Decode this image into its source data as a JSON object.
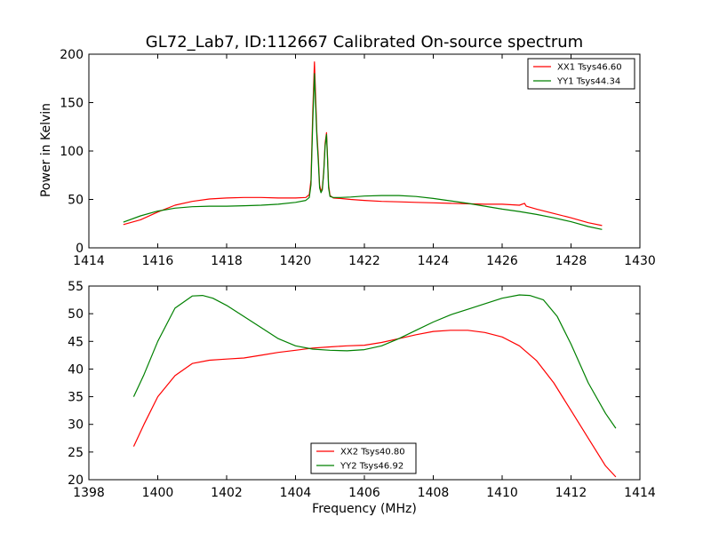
{
  "figure": {
    "title": "GL72_Lab7, ID:112667 Calibrated On-source spectrum",
    "ylabel": "Power in Kelvin",
    "xlabel": "Frequency (MHz)"
  },
  "chart_data": [
    {
      "type": "line",
      "xlim": [
        1414,
        1430
      ],
      "ylim": [
        0,
        200
      ],
      "xticks": [
        1414,
        1416,
        1418,
        1420,
        1422,
        1424,
        1426,
        1428,
        1430
      ],
      "yticks": [
        0,
        50,
        100,
        150,
        200
      ],
      "legend_position": "top-right",
      "series": [
        {
          "name": "XX1 Tsys46.60",
          "color": "#ff0000",
          "x": [
            1415.0,
            1415.5,
            1416.0,
            1416.5,
            1417.0,
            1417.5,
            1418.0,
            1418.5,
            1419.0,
            1419.5,
            1420.0,
            1420.3,
            1420.4,
            1420.45,
            1420.5,
            1420.55,
            1420.58,
            1420.62,
            1420.66,
            1420.7,
            1420.74,
            1420.78,
            1420.82,
            1420.86,
            1420.9,
            1420.93,
            1420.96,
            1421.0,
            1421.1,
            1421.3,
            1421.6,
            1422.0,
            1422.5,
            1423.0,
            1423.5,
            1424.0,
            1424.5,
            1425.0,
            1425.5,
            1426.0,
            1426.5,
            1426.65,
            1426.7,
            1427.0,
            1427.5,
            1428.0,
            1428.5,
            1428.9
          ],
          "y": [
            24,
            29,
            37,
            44,
            48,
            50.5,
            51.5,
            52,
            52,
            51.5,
            51.5,
            52,
            55,
            70,
            140,
            192,
            160,
            120,
            95,
            65,
            58,
            62,
            80,
            108,
            119,
            95,
            65,
            54,
            51.5,
            51,
            50,
            49,
            48,
            47.5,
            47,
            46.5,
            46,
            45.5,
            45,
            45,
            44,
            46,
            43,
            40,
            35.5,
            31,
            26,
            23
          ]
        },
        {
          "name": "YY1 Tsys44.34",
          "color": "#008000",
          "x": [
            1415.0,
            1415.5,
            1416.0,
            1416.5,
            1417.0,
            1417.5,
            1418.0,
            1418.5,
            1419.0,
            1419.5,
            1420.0,
            1420.3,
            1420.4,
            1420.45,
            1420.5,
            1420.55,
            1420.58,
            1420.62,
            1420.66,
            1420.7,
            1420.74,
            1420.78,
            1420.82,
            1420.86,
            1420.9,
            1420.93,
            1420.96,
            1421.0,
            1421.1,
            1421.3,
            1421.6,
            1422.0,
            1422.5,
            1423.0,
            1423.5,
            1424.0,
            1424.5,
            1425.0,
            1425.5,
            1426.0,
            1426.5,
            1427.0,
            1427.5,
            1428.0,
            1428.5,
            1428.9
          ],
          "y": [
            26.5,
            33,
            38,
            41,
            42.5,
            43,
            43,
            43.5,
            44,
            45,
            47,
            49,
            52,
            65,
            130,
            180,
            150,
            115,
            90,
            62,
            57,
            60,
            78,
            105,
            117,
            92,
            62,
            53,
            52,
            52,
            52.5,
            53.5,
            54,
            54,
            53,
            51,
            48.5,
            46,
            43,
            40,
            37.5,
            34.5,
            31,
            27,
            22,
            19
          ]
        }
      ]
    },
    {
      "type": "line",
      "xlim": [
        1398,
        1414
      ],
      "ylim": [
        20,
        55
      ],
      "xticks": [
        1398,
        1400,
        1402,
        1404,
        1406,
        1408,
        1410,
        1412,
        1414
      ],
      "yticks": [
        20,
        25,
        30,
        35,
        40,
        45,
        50,
        55
      ],
      "legend_position": "bottom-center",
      "series": [
        {
          "name": "XX2 Tsys40.80",
          "color": "#ff0000",
          "x": [
            1399.3,
            1399.6,
            1400.0,
            1400.5,
            1401.0,
            1401.5,
            1402.0,
            1402.5,
            1403.0,
            1403.5,
            1404.0,
            1404.5,
            1405.0,
            1405.5,
            1406.0,
            1406.5,
            1407.0,
            1407.5,
            1408.0,
            1408.5,
            1409.0,
            1409.5,
            1410.0,
            1410.5,
            1411.0,
            1411.5,
            1412.0,
            1412.5,
            1413.0,
            1413.3
          ],
          "y": [
            26,
            30,
            35,
            38.8,
            41,
            41.6,
            41.8,
            42,
            42.5,
            43,
            43.4,
            43.8,
            44,
            44.2,
            44.3,
            44.8,
            45.5,
            46.2,
            46.8,
            47,
            47,
            46.6,
            45.8,
            44.2,
            41.5,
            37.5,
            32.5,
            27.5,
            22.5,
            20.5
          ]
        },
        {
          "name": "YY2 Tsys46.92",
          "color": "#008000",
          "x": [
            1399.3,
            1399.6,
            1400.0,
            1400.5,
            1401.0,
            1401.3,
            1401.6,
            1402.0,
            1402.5,
            1403.0,
            1403.5,
            1404.0,
            1404.5,
            1405.0,
            1405.5,
            1406.0,
            1406.5,
            1407.0,
            1407.5,
            1408.0,
            1408.5,
            1409.0,
            1409.5,
            1410.0,
            1410.5,
            1410.8,
            1411.2,
            1411.6,
            1412.0,
            1412.5,
            1413.0,
            1413.3
          ],
          "y": [
            35,
            39,
            45,
            51,
            53.2,
            53.3,
            52.8,
            51.5,
            49.5,
            47.5,
            45.5,
            44.2,
            43.6,
            43.4,
            43.3,
            43.5,
            44.2,
            45.5,
            47,
            48.5,
            49.8,
            50.8,
            51.8,
            52.8,
            53.4,
            53.3,
            52.5,
            49.5,
            44.5,
            37.5,
            32,
            29.3
          ]
        }
      ]
    }
  ]
}
